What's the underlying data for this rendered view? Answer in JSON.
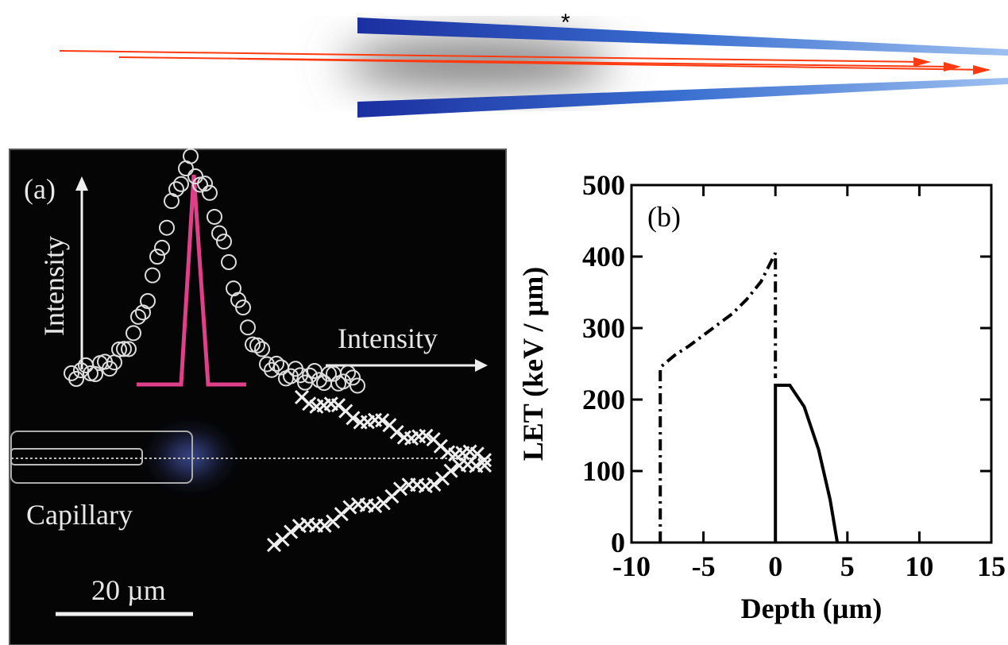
{
  "diagram": {
    "label": "*"
  },
  "panel_a": {
    "label": "(a)",
    "vertical_axis_label": "Intensity",
    "horizontal_axis_label": "Intensity",
    "capillary_label": "Capillary",
    "scale_bar_label": "20 µm"
  },
  "chart_data": {
    "type": "line",
    "panel_label": "(b)",
    "x_label": "Depth (µm)",
    "y_label": "LET (keV / µm)",
    "xlim": [
      -10,
      15
    ],
    "ylim": [
      0,
      500
    ],
    "xticks": [
      -10,
      -5,
      0,
      5,
      10,
      15
    ],
    "yticks": [
      0,
      100,
      200,
      300,
      400,
      500
    ],
    "series": [
      {
        "color": "#000000",
        "line_style": "dashdot",
        "x": [
          -8,
          -8,
          -7,
          -6,
          -5,
          -4,
          -3,
          -2,
          -1,
          -0.5,
          0,
          0
        ],
        "values": [
          0,
          245,
          262,
          275,
          290,
          305,
          320,
          340,
          365,
          385,
          405,
          230
        ]
      },
      {
        "color": "#000000",
        "line_style": "solid",
        "x": [
          0,
          0,
          1,
          2,
          3,
          3.8,
          4.3
        ],
        "values": [
          0,
          220,
          220,
          190,
          130,
          60,
          0
        ]
      }
    ]
  }
}
